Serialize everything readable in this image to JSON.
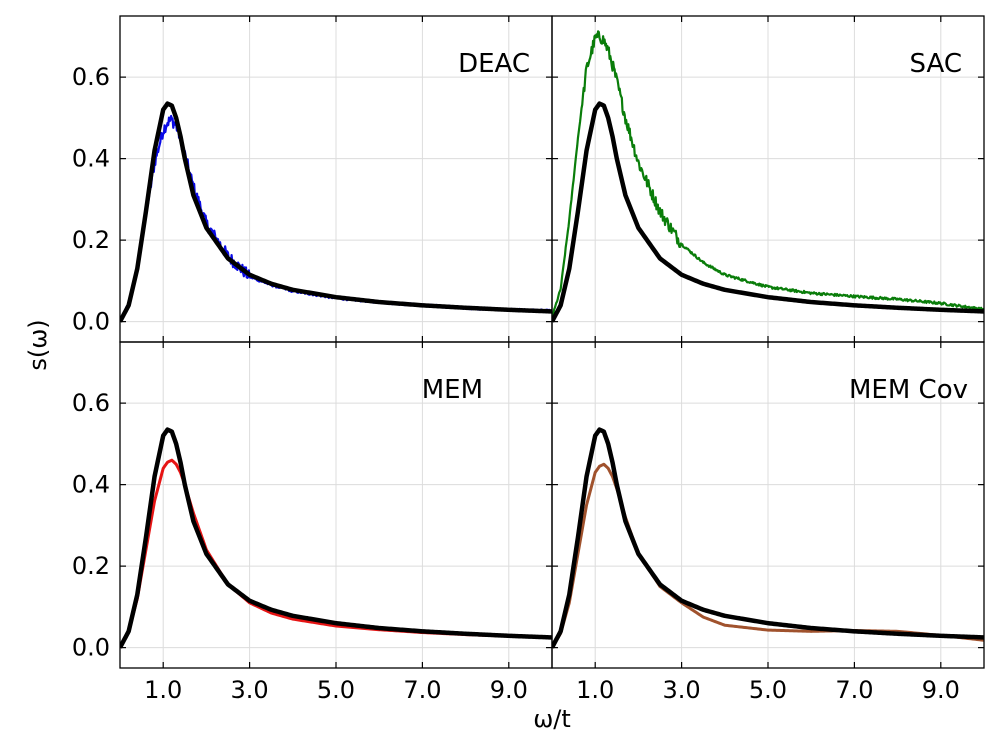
{
  "figure": {
    "xlabel": "ω/t",
    "ylabel": "s(ω)"
  },
  "chart_data": {
    "type": "line",
    "layout": "2x2 grid, shared axes",
    "xlim": [
      0,
      10
    ],
    "ylim": [
      -0.05,
      0.75
    ],
    "xticks": [
      1,
      3,
      5,
      7,
      9
    ],
    "xtick_labels": [
      "1.0",
      "3.0",
      "5.0",
      "7.0",
      "9.0"
    ],
    "yticks": [
      0.0,
      0.2,
      0.4,
      0.6
    ],
    "ytick_labels": [
      "0.0",
      "0.2",
      "0.4",
      "0.6"
    ],
    "grid": true,
    "colors": {
      "reference": "#000000",
      "DEAC": "#0a0ae6",
      "SAC": "#0a7d0a",
      "MEM": "#e61414",
      "MEM_Cov": "#a0522d"
    },
    "reference_curve": {
      "name": "",
      "color": "#000000",
      "x": [
        0,
        0.2,
        0.4,
        0.6,
        0.8,
        1.0,
        1.1,
        1.2,
        1.3,
        1.4,
        1.5,
        1.7,
        2.0,
        2.5,
        3.0,
        3.5,
        4.0,
        5.0,
        6.0,
        7.0,
        8.0,
        9.0,
        10.0
      ],
      "y": [
        0.0,
        0.04,
        0.13,
        0.27,
        0.42,
        0.52,
        0.535,
        0.53,
        0.5,
        0.455,
        0.4,
        0.31,
        0.23,
        0.155,
        0.115,
        0.093,
        0.078,
        0.06,
        0.048,
        0.04,
        0.034,
        0.029,
        0.025
      ]
    },
    "panels": [
      {
        "label": "DEAC",
        "series": [
          {
            "name": "",
            "color": "#0a0ae6",
            "noisy": true,
            "x": [
              0,
              0.2,
              0.4,
              0.6,
              0.8,
              1.0,
              1.1,
              1.2,
              1.3,
              1.4,
              1.5,
              1.7,
              2.0,
              2.5,
              3.0,
              3.5,
              4.0,
              5.0,
              6.0,
              7.0,
              8.0,
              9.0,
              10.0
            ],
            "y": [
              0.0,
              0.045,
              0.13,
              0.26,
              0.39,
              0.47,
              0.49,
              0.495,
              0.48,
              0.45,
              0.41,
              0.33,
              0.24,
              0.16,
              0.11,
              0.09,
              0.075,
              0.058,
              0.048,
              0.04,
              0.034,
              0.029,
              0.026
            ]
          }
        ]
      },
      {
        "label": "SAC",
        "series": [
          {
            "name": "",
            "color": "#0a7d0a",
            "noisy": true,
            "x": [
              0,
              0.2,
              0.4,
              0.6,
              0.8,
              1.0,
              1.1,
              1.2,
              1.3,
              1.4,
              1.5,
              1.7,
              2.0,
              2.5,
              3.0,
              3.5,
              4.0,
              5.0,
              6.0,
              7.0,
              8.0,
              9.0,
              10.0
            ],
            "y": [
              0.01,
              0.08,
              0.25,
              0.45,
              0.62,
              0.695,
              0.7,
              0.69,
              0.665,
              0.63,
              0.59,
              0.5,
              0.39,
              0.27,
              0.19,
              0.145,
              0.115,
              0.085,
              0.07,
              0.062,
              0.055,
              0.045,
              0.03
            ]
          }
        ]
      },
      {
        "label": "MEM",
        "series": [
          {
            "name": "",
            "color": "#e61414",
            "noisy": false,
            "x": [
              0,
              0.2,
              0.4,
              0.6,
              0.8,
              1.0,
              1.1,
              1.2,
              1.3,
              1.4,
              1.5,
              1.7,
              2.0,
              2.5,
              3.0,
              3.5,
              4.0,
              5.0,
              6.0,
              7.0,
              8.0,
              9.0,
              10.0
            ],
            "y": [
              0.0,
              0.04,
              0.12,
              0.24,
              0.36,
              0.44,
              0.455,
              0.46,
              0.45,
              0.43,
              0.4,
              0.33,
              0.24,
              0.155,
              0.11,
              0.085,
              0.07,
              0.053,
              0.044,
              0.037,
              0.032,
              0.028,
              0.025
            ]
          }
        ]
      },
      {
        "label": "MEM Cov",
        "series": [
          {
            "name": "",
            "color": "#a0522d",
            "noisy": false,
            "x": [
              0,
              0.2,
              0.4,
              0.6,
              0.8,
              1.0,
              1.1,
              1.2,
              1.3,
              1.4,
              1.5,
              1.7,
              2.0,
              2.5,
              3.0,
              3.5,
              4.0,
              5.0,
              6.0,
              7.0,
              8.0,
              9.0,
              10.0
            ],
            "y": [
              0.0,
              0.035,
              0.11,
              0.23,
              0.35,
              0.43,
              0.445,
              0.45,
              0.44,
              0.42,
              0.39,
              0.32,
              0.23,
              0.15,
              0.11,
              0.075,
              0.055,
              0.043,
              0.04,
              0.042,
              0.04,
              0.03,
              0.018
            ]
          }
        ]
      }
    ]
  }
}
